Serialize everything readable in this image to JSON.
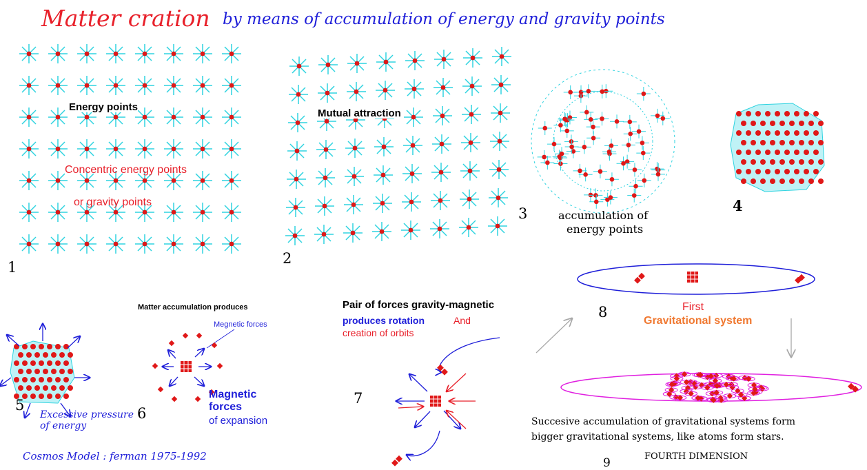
{
  "title": {
    "main": "Matter cration",
    "sub": "by means of accumulation of energy and gravity points"
  },
  "panels": {
    "p1": {
      "number": "1",
      "label": "Energy points",
      "red_line1": "Concentric energy points",
      "red_line2": "or gravity points"
    },
    "p2": {
      "number": "2",
      "label": "Mutual attraction"
    },
    "p3": {
      "number": "3",
      "caption_line1": "accumulation of",
      "caption_line2": "energy points"
    },
    "p4": {
      "number": "4"
    },
    "p5": {
      "number": "5",
      "caption_line1": "Excessive pressure",
      "caption_line2": "of energy"
    },
    "p6": {
      "number": "6",
      "heading": "Matter accumulation produces",
      "magnetic_small": "Megnetic forces",
      "magnetic_big_1": "Magnetic",
      "magnetic_big_2": "forces",
      "expansion": "of expansion"
    },
    "p7": {
      "number": "7",
      "heading": "Pair of forces gravity-magnetic",
      "rotation": "produces rotation",
      "and": "And",
      "orbits": "creation of orbits"
    },
    "p8": {
      "number": "8",
      "first": "First",
      "gravitational": "Gravitational system"
    },
    "p9": {
      "number": "9",
      "line1": "Succesive accumulation of gravitational systems form",
      "line2": "bigger gravitational systems, like atoms form stars.",
      "dimension": "FOURTH DIMENSION"
    }
  },
  "credit": "Cosmos Model : ferman 1975-1992",
  "colors": {
    "title_red": "#e8202a",
    "title_blue": "#1f1fd9",
    "cyan_rays": "#2fd3e0",
    "point_red": "#e01818",
    "orbit_blue": "#1f1fd9",
    "orbit_magenta": "#e020e0",
    "orange_text": "#f07830",
    "grey_arrow": "#a8a8a8"
  }
}
